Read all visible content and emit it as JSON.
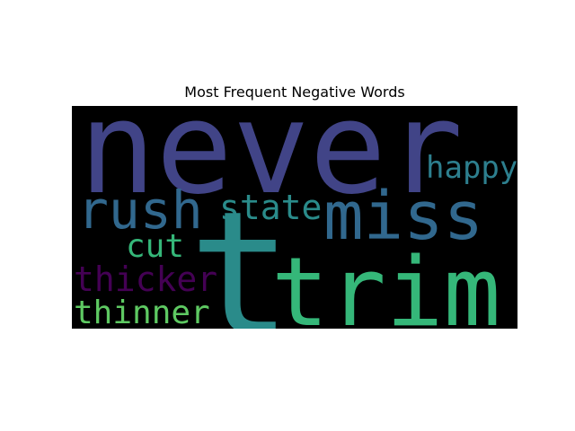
{
  "chart_data": {
    "type": "wordcloud",
    "title": "Most Frequent Negative Words",
    "background": "#000000",
    "words": [
      {
        "text": "never",
        "color": "#414487"
      },
      {
        "text": "t",
        "color": "#2a8b8a"
      },
      {
        "text": "trim",
        "color": "#35b779"
      },
      {
        "text": "miss",
        "color": "#31688e"
      },
      {
        "text": "rush",
        "color": "#31688e"
      },
      {
        "text": "happy",
        "color": "#2d7f8e"
      },
      {
        "text": "state",
        "color": "#2a8b8a"
      },
      {
        "text": "cut",
        "color": "#35b779"
      },
      {
        "text": "thicker",
        "color": "#440154"
      },
      {
        "text": "thinner",
        "color": "#5ec962"
      }
    ]
  }
}
